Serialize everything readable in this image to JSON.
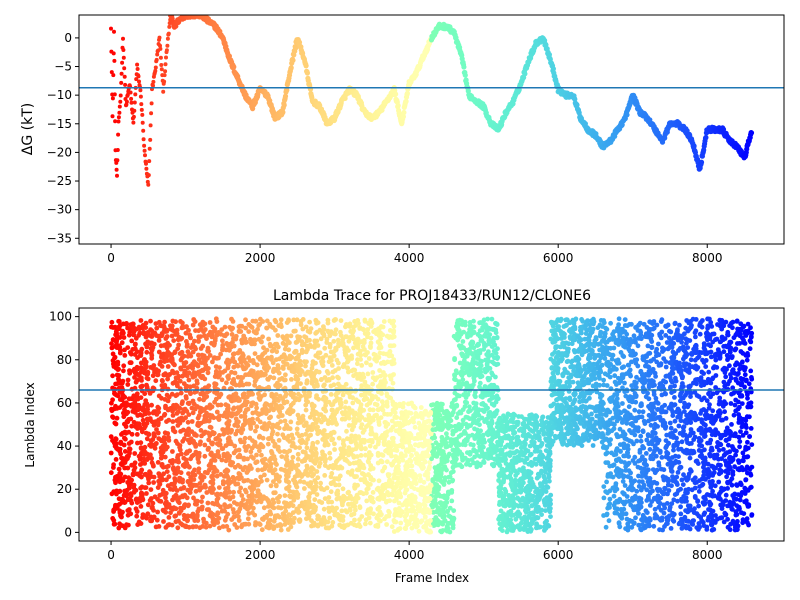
{
  "chart_data": [
    {
      "type": "scatter",
      "title": "",
      "xlabel": "",
      "ylabel": "ΔG (kT)",
      "xlim": [
        -430,
        9030
      ],
      "ylim": [
        -36,
        4
      ],
      "xticks": [
        0,
        2000,
        4000,
        6000,
        8000
      ],
      "yticks": [
        0,
        -5,
        -10,
        -15,
        -20,
        -25,
        -30,
        -35
      ],
      "hline": -8.7,
      "hline_color": "#1f77b4",
      "colormap": "rainbow (early frames red, late frames purple)",
      "series": [
        {
          "values_description": "x = frame index, y = ΔG (kT), sampled trace",
          "x": [
            0,
            20,
            40,
            60,
            80,
            100,
            130,
            160,
            200,
            250,
            300,
            350,
            400,
            450,
            500,
            550,
            600,
            650,
            700,
            750,
            800,
            850,
            900,
            1000,
            1100,
            1200,
            1300,
            1400,
            1500,
            1600,
            1700,
            1800,
            1900,
            2000,
            2100,
            2200,
            2300,
            2400,
            2500,
            2600,
            2700,
            2800,
            2900,
            3000,
            3100,
            3200,
            3300,
            3400,
            3500,
            3600,
            3700,
            3800,
            3900,
            4000,
            4100,
            4200,
            4300,
            4400,
            4500,
            4600,
            4700,
            4800,
            4900,
            5000,
            5100,
            5200,
            5300,
            5400,
            5500,
            5600,
            5700,
            5800,
            5900,
            6000,
            6100,
            6200,
            6300,
            6400,
            6500,
            6600,
            6700,
            6800,
            6900,
            7000,
            7100,
            7200,
            7300,
            7400,
            7500,
            7600,
            7700,
            7800,
            7900,
            8000,
            8100,
            8200,
            8300,
            8400,
            8500,
            8600
          ],
          "y": [
            2,
            -14,
            1,
            -20,
            -24,
            -15,
            -10,
            0,
            -12,
            -8,
            -15,
            -5,
            -10,
            -20,
            -26,
            -9,
            -5,
            0,
            -9,
            -2,
            4,
            2,
            3,
            4,
            4,
            4,
            3,
            2,
            0,
            -4,
            -7,
            -10,
            -12,
            -9,
            -10,
            -14,
            -13,
            -6,
            0,
            -4,
            -11,
            -12,
            -15,
            -14,
            -11,
            -9,
            -10,
            -13,
            -14,
            -13,
            -11,
            -9,
            -15,
            -8,
            -6,
            -3,
            0,
            2,
            2,
            1,
            -3,
            -10,
            -11,
            -12,
            -15,
            -16,
            -13,
            -11,
            -8,
            -4,
            -1,
            0,
            -4,
            -9,
            -10,
            -10,
            -14,
            -16,
            -17,
            -19,
            -18,
            -16,
            -14,
            -10,
            -13,
            -14,
            -16,
            -18,
            -15,
            -15,
            -16,
            -18,
            -23,
            -16,
            -16,
            -16,
            -18,
            -19,
            -21,
            -16
          ]
        }
      ]
    },
    {
      "type": "scatter",
      "title": "Lambda Trace for PROJ18433/RUN12/CLONE6",
      "xlabel": "Frame Index",
      "ylabel": "Lambda Index",
      "xlim": [
        -430,
        9030
      ],
      "ylim": [
        -4,
        104
      ],
      "xticks": [
        0,
        2000,
        4000,
        6000,
        8000
      ],
      "yticks": [
        0,
        20,
        40,
        60,
        80,
        100
      ],
      "hline": 66,
      "hline_color": "#1f77b4",
      "colormap": "rainbow (early frames red, late frames purple)",
      "series": [
        {
          "values_description": "x = frame index, y = lambda index (0–99); dense band per frame segment",
          "segments": [
            {
              "x0": 0,
              "x1": 300,
              "y0": 2,
              "y1": 98
            },
            {
              "x0": 300,
              "x1": 1500,
              "y0": 2,
              "y1": 99
            },
            {
              "x0": 1500,
              "x1": 2500,
              "y0": 1,
              "y1": 99
            },
            {
              "x0": 2500,
              "x1": 3400,
              "y0": 2,
              "y1": 99
            },
            {
              "x0": 3400,
              "x1": 3800,
              "y0": 2,
              "y1": 99
            },
            {
              "x0": 3800,
              "x1": 4600,
              "y0": 0,
              "y1": 60
            },
            {
              "x0": 4600,
              "x1": 5200,
              "y0": 30,
              "y1": 99
            },
            {
              "x0": 5200,
              "x1": 5900,
              "y0": 0,
              "y1": 55
            },
            {
              "x0": 5900,
              "x1": 6600,
              "y0": 40,
              "y1": 99
            },
            {
              "x0": 6600,
              "x1": 8600,
              "y0": 1,
              "y1": 99
            }
          ]
        }
      ]
    }
  ]
}
